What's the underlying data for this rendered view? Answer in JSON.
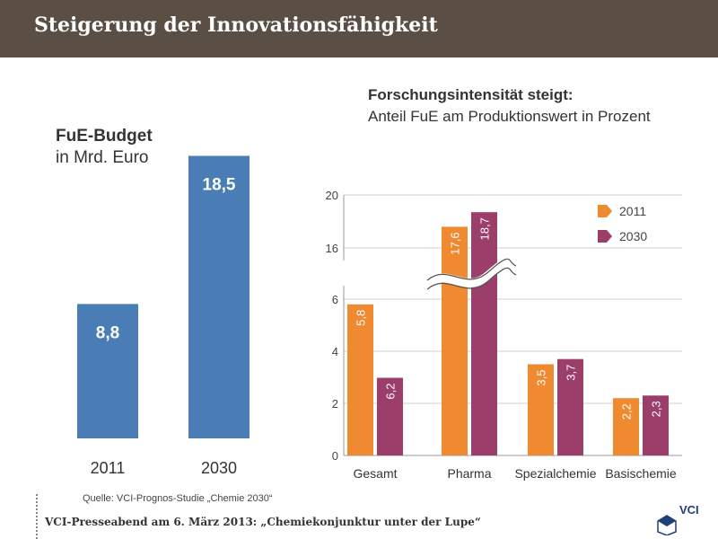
{
  "header": {
    "title": "Steigerung der Innovationsfähigkeit"
  },
  "left_chart": {
    "title_bold": "FuE-Budget",
    "title_sub": "in Mrd. Euro"
  },
  "right_chart": {
    "title_bold": "Forschungsintensität steigt:",
    "title_sub": "Anteil FuE am Produktionswert in Prozent"
  },
  "source": "Quelle: VCI-Prognos-Studie „Chemie 2030“",
  "footer": {
    "text": "VCI-Presseabend am 6. März 2013: „Chemiekonjunktur unter der Lupe“",
    "logo_text": "VCI"
  },
  "colors": {
    "header": "#5b4f45",
    "blue": "#4a7db5",
    "orange": "#f08a30",
    "purple": "#9b3e6a"
  },
  "chart_data": [
    {
      "type": "bar",
      "title": "FuE-Budget in Mrd. Euro",
      "categories": [
        "2011",
        "2030"
      ],
      "values": [
        8.8,
        18.5
      ],
      "labels": [
        "8,8",
        "18,5"
      ]
    },
    {
      "type": "bar",
      "title": "Forschungsintensität steigt: Anteil FuE am Produktionswert in Prozent",
      "categories": [
        "Gesamt",
        "Pharma",
        "Spezialchemie",
        "Basischemie"
      ],
      "series": [
        {
          "name": "2011",
          "values": [
            5.8,
            17.6,
            3.5,
            2.2
          ],
          "labels": [
            "5,8",
            "17,6",
            "3,5",
            "2,2"
          ]
        },
        {
          "name": "2030",
          "values": [
            6.2,
            18.7,
            3.7,
            2.3
          ],
          "labels": [
            "6,2",
            "18,7",
            "3,7",
            "2,3"
          ]
        }
      ],
      "y_ticks_lower": [
        "0",
        "2",
        "4",
        "6"
      ],
      "y_ticks_upper": [
        "16",
        "20"
      ],
      "axis_break": true,
      "legend": [
        "2011",
        "2030"
      ],
      "legend_position": "top-right"
    }
  ]
}
